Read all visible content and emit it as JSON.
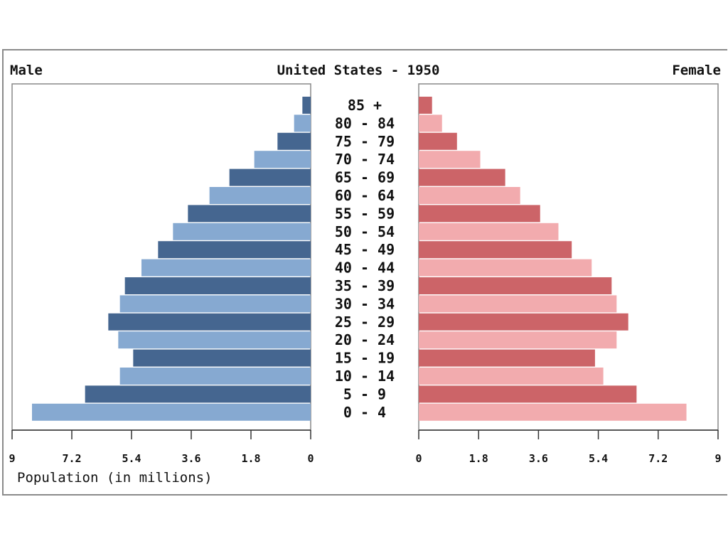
{
  "chart_data": {
    "type": "bar",
    "title": "United States - 1950",
    "left_label": "Male",
    "right_label": "Female",
    "xlabel": "Population (in millions)",
    "xlim": [
      0,
      9
    ],
    "x_ticks": [
      "9",
      "7.2",
      "5.4",
      "3.6",
      "1.8",
      "0",
      "0",
      "1.8",
      "3.6",
      "5.4",
      "7.2",
      "9"
    ],
    "categories": [
      "85 +",
      "80 - 84",
      "75 - 79",
      "70 - 74",
      "65 - 69",
      "60 - 64",
      "55 - 59",
      "50 - 54",
      "45 - 49",
      "40 - 44",
      "35 - 39",
      "30 - 34",
      "25 - 29",
      "20 - 24",
      "15 - 19",
      "10 - 14",
      "5 - 9",
      "0 - 4"
    ],
    "series": [
      {
        "name": "Male",
        "values": [
          0.25,
          0.5,
          1.0,
          1.7,
          2.45,
          3.05,
          3.7,
          4.15,
          4.6,
          5.1,
          5.6,
          5.75,
          6.1,
          5.8,
          5.35,
          5.75,
          6.8,
          8.4
        ],
        "colors": [
          "#456690",
          "#86a9d1"
        ]
      },
      {
        "name": "Female",
        "values": [
          0.4,
          0.7,
          1.15,
          1.85,
          2.6,
          3.05,
          3.65,
          4.2,
          4.6,
          5.2,
          5.8,
          5.95,
          6.3,
          5.95,
          5.3,
          5.55,
          6.55,
          8.05
        ],
        "colors": [
          "#cc6468",
          "#f2abae"
        ]
      }
    ]
  }
}
